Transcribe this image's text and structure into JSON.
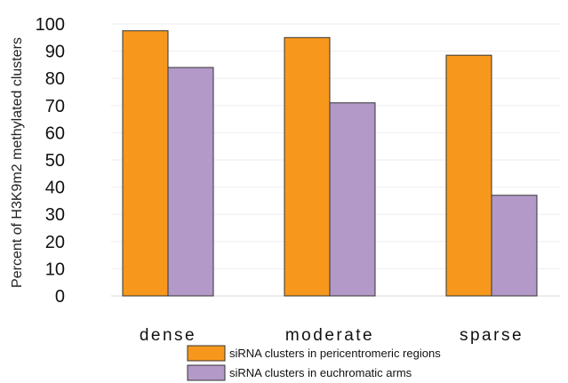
{
  "chart_data": {
    "type": "bar",
    "categories": [
      "dense",
      "moderate",
      "sparse"
    ],
    "series": [
      {
        "name": "siRNA clusters in pericentromeric regions",
        "values": [
          97.5,
          95,
          88.5
        ],
        "color": "#F7981D"
      },
      {
        "name": "siRNA clusters in euchromatic arms",
        "values": [
          84,
          71,
          37
        ],
        "color": "#B399C8"
      }
    ],
    "title": "",
    "xlabel": "",
    "ylabel": "Percent of H3K9m2 methylated clusters",
    "ylim": [
      0,
      100
    ],
    "yticks": [
      "0",
      "10",
      "20",
      "30",
      "40",
      "50",
      "60",
      "70",
      "80",
      "90",
      "100"
    ],
    "grid": true,
    "legend_position": "bottom-center"
  }
}
